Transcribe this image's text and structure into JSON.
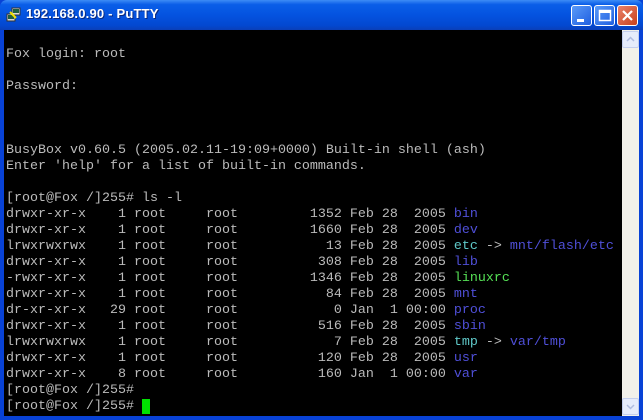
{
  "window": {
    "title": "192.168.0.90 - PuTTY"
  },
  "colors": {
    "text": "#bbbbbb",
    "dir": "#4f4fd8",
    "link": "#5fc8c8",
    "exec": "#55e055",
    "cursor": "#00e000"
  },
  "terminal": {
    "lines": [
      [],
      [
        {
          "t": "Fox login: root"
        }
      ],
      [],
      [
        {
          "t": "Password:"
        }
      ],
      [],
      [],
      [],
      [
        {
          "t": "BusyBox v0.60.5 (2005.02.11-19:09+0000) Built-in shell (ash)"
        }
      ],
      [
        {
          "t": "Enter 'help' for a list of built-in commands."
        }
      ],
      [],
      [
        {
          "t": "[root@Fox /]255# ls -l"
        }
      ],
      [
        {
          "t": "drwxr-xr-x    1 root     root         1352 Feb 28  2005 "
        },
        {
          "t": "bin",
          "c": "dir"
        }
      ],
      [
        {
          "t": "drwxr-xr-x    1 root     root         1660 Feb 28  2005 "
        },
        {
          "t": "dev",
          "c": "dir"
        }
      ],
      [
        {
          "t": "lrwxrwxrwx    1 root     root           13 Feb 28  2005 "
        },
        {
          "t": "etc",
          "c": "link"
        },
        {
          "t": " -> "
        },
        {
          "t": "mnt/flash/etc",
          "c": "dir"
        }
      ],
      [
        {
          "t": "drwxr-xr-x    1 root     root          308 Feb 28  2005 "
        },
        {
          "t": "lib",
          "c": "dir"
        }
      ],
      [
        {
          "t": "-rwxr-xr-x    1 root     root         1346 Feb 28  2005 "
        },
        {
          "t": "linuxrc",
          "c": "exec"
        }
      ],
      [
        {
          "t": "drwxr-xr-x    1 root     root           84 Feb 28  2005 "
        },
        {
          "t": "mnt",
          "c": "dir"
        }
      ],
      [
        {
          "t": "dr-xr-xr-x   29 root     root            0 Jan  1 00:00 "
        },
        {
          "t": "proc",
          "c": "dir"
        }
      ],
      [
        {
          "t": "drwxr-xr-x    1 root     root          516 Feb 28  2005 "
        },
        {
          "t": "sbin",
          "c": "dir"
        }
      ],
      [
        {
          "t": "lrwxrwxrwx    1 root     root            7 Feb 28  2005 "
        },
        {
          "t": "tmp",
          "c": "link"
        },
        {
          "t": " -> "
        },
        {
          "t": "var/tmp",
          "c": "dir"
        }
      ],
      [
        {
          "t": "drwxr-xr-x    1 root     root          120 Feb 28  2005 "
        },
        {
          "t": "usr",
          "c": "dir"
        }
      ],
      [
        {
          "t": "drwxr-xr-x    8 root     root          160 Jan  1 00:00 "
        },
        {
          "t": "var",
          "c": "dir"
        }
      ],
      [
        {
          "t": "[root@Fox /]255#"
        }
      ],
      [
        {
          "t": "[root@Fox /]255# "
        },
        {
          "cursor": true
        }
      ]
    ]
  }
}
